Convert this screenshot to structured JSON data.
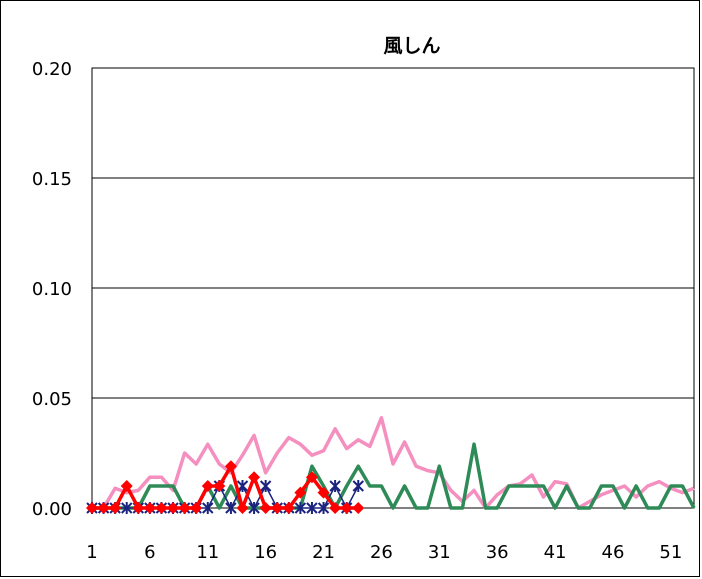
{
  "chart_data": {
    "type": "line",
    "title": "風しん",
    "xlabel": "",
    "ylabel": "",
    "ylim": [
      0,
      0.2
    ],
    "yticks": [
      "0.00",
      "0.05",
      "0.10",
      "0.15",
      "0.20"
    ],
    "xlim": [
      1,
      53
    ],
    "xticks": [
      "1",
      "6",
      "11",
      "16",
      "21",
      "26",
      "31",
      "36",
      "41",
      "46",
      "51"
    ],
    "grid": true,
    "legend": "none",
    "series": [
      {
        "color": "#f48fbf",
        "marker": "none",
        "x": [
          1,
          2,
          3,
          4,
          5,
          6,
          7,
          8,
          9,
          10,
          11,
          12,
          13,
          14,
          15,
          16,
          17,
          18,
          19,
          20,
          21,
          22,
          23,
          24,
          25,
          26,
          27,
          28,
          29,
          30,
          31,
          32,
          33,
          34,
          35,
          36,
          37,
          38,
          39,
          40,
          41,
          42,
          43,
          44,
          45,
          46,
          47,
          48,
          49,
          50,
          51,
          52,
          53
        ],
        "values": [
          0.0,
          0.0,
          0.009,
          0.007,
          0.008,
          0.014,
          0.014,
          0.008,
          0.025,
          0.02,
          0.029,
          0.02,
          0.016,
          0.024,
          0.033,
          0.016,
          0.025,
          0.032,
          0.029,
          0.024,
          0.026,
          0.036,
          0.027,
          0.031,
          0.028,
          0.041,
          0.02,
          0.03,
          0.019,
          0.017,
          0.016,
          0.008,
          0.003,
          0.008,
          0.0,
          0.006,
          0.01,
          0.011,
          0.015,
          0.005,
          0.012,
          0.011,
          0.0,
          0.003,
          0.006,
          0.008,
          0.01,
          0.005,
          0.01,
          0.012,
          0.009,
          0.007,
          0.009
        ]
      },
      {
        "color": "#2e8b57",
        "marker": "none",
        "x": [
          1,
          2,
          3,
          4,
          5,
          6,
          7,
          8,
          9,
          10,
          11,
          12,
          13,
          14,
          15,
          16,
          17,
          18,
          19,
          20,
          21,
          22,
          23,
          24,
          25,
          26,
          27,
          28,
          29,
          30,
          31,
          32,
          33,
          34,
          35,
          36,
          37,
          38,
          39,
          40,
          41,
          42,
          43,
          44,
          45,
          46,
          47,
          48,
          49,
          50,
          51,
          52,
          53
        ],
        "values": [
          0.0,
          0.0,
          0.0,
          0.0,
          0.0,
          0.01,
          0.01,
          0.01,
          0.0,
          0.0,
          0.01,
          0.0,
          0.01,
          0.0,
          0.0,
          0.0,
          0.0,
          0.0,
          0.0,
          0.019,
          0.01,
          0.0,
          0.01,
          0.019,
          0.01,
          0.01,
          0.0,
          0.01,
          0.0,
          0.0,
          0.019,
          0.0,
          0.0,
          0.029,
          0.0,
          0.0,
          0.01,
          0.01,
          0.01,
          0.01,
          0.0,
          0.01,
          0.0,
          0.0,
          0.01,
          0.01,
          0.0,
          0.01,
          0.0,
          0.0,
          0.01,
          0.01,
          0.0
        ]
      },
      {
        "color": "#1a237e",
        "marker": "asterisk",
        "x": [
          1,
          2,
          3,
          4,
          5,
          6,
          7,
          8,
          9,
          10,
          11,
          12,
          13,
          14,
          15,
          16,
          17,
          18,
          19,
          20,
          21,
          22,
          23,
          24
        ],
        "values": [
          0.0,
          0.0,
          0.0,
          0.0,
          0.0,
          0.0,
          0.0,
          0.0,
          0.0,
          0.0,
          0.0,
          0.01,
          0.0,
          0.01,
          0.0,
          0.01,
          0.0,
          0.0,
          0.0,
          0.0,
          0.0,
          0.01,
          0.0,
          0.01
        ]
      },
      {
        "color": "#ff0000",
        "marker": "diamond",
        "x": [
          1,
          2,
          3,
          4,
          5,
          6,
          7,
          8,
          9,
          10,
          11,
          12,
          13,
          14,
          15,
          16,
          17,
          18,
          19,
          20,
          21,
          22,
          23,
          24
        ],
        "values": [
          0.0,
          0.0,
          0.0,
          0.01,
          0.0,
          0.0,
          0.0,
          0.0,
          0.0,
          0.0,
          0.01,
          0.01,
          0.019,
          0.0,
          0.014,
          0.0,
          0.0,
          0.0,
          0.007,
          0.014,
          0.007,
          0.0,
          0.0,
          0.0
        ]
      }
    ]
  }
}
